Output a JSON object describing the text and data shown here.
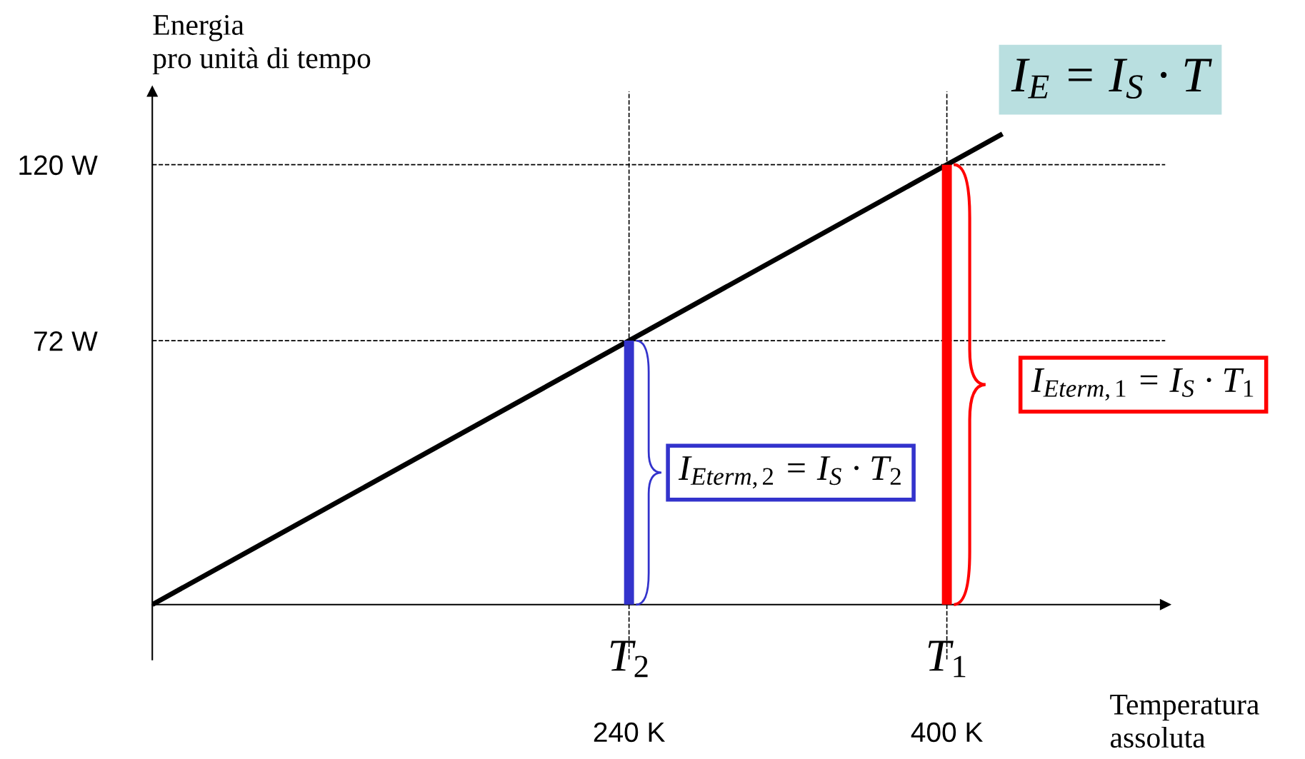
{
  "chart_data": {
    "type": "line",
    "xlabel": "Temperatura\nassoluta",
    "ylabel": "Energia\npro unità di tempo",
    "series": [
      {
        "color": "#000000",
        "x": [
          0,
          428
        ],
        "values": [
          0,
          128.4
        ]
      },
      {
        "type": "bar",
        "x": [
          240,
          400
        ],
        "values": [
          72,
          120
        ],
        "colors": [
          "#3333cc",
          "#ff0000"
        ]
      }
    ],
    "xlim": [
      0,
      510
    ],
    "ylim": [
      -15,
      140
    ],
    "xticks": [
      {
        "value": 240,
        "label": "240 K"
      },
      {
        "value": 400,
        "label": "400 K"
      }
    ],
    "yticks": [
      {
        "value": 72,
        "label": "72 W"
      },
      {
        "value": 120,
        "label": "120 W"
      }
    ],
    "ref_lines": [
      {
        "axis": "x",
        "value": 240,
        "line_style": "dashed",
        "color": "#000000"
      },
      {
        "axis": "x",
        "value": 400,
        "line_style": "dashed",
        "color": "#000000"
      },
      {
        "axis": "y",
        "value": 72,
        "line_style": "dashed",
        "color": "#000000"
      },
      {
        "axis": "y",
        "value": 120,
        "line_style": "dashed",
        "color": "#000000"
      }
    ],
    "annotations": [
      "I$_{E}$ = I$_{S}$ · T",
      "I$_{Eterm,1}$ = I$_{S}$ · T$_{1}$",
      "I$_{Eterm,2}$ = I$_{S}$ · T$_{2}$",
      {
        "text": "T$_{2}$",
        "x": 240,
        "y": 0
      },
      {
        "text": "T$_{1}$",
        "x": 400,
        "y": 0
      }
    ],
    "grid": false,
    "marker": "none",
    "line_style": "solid"
  }
}
